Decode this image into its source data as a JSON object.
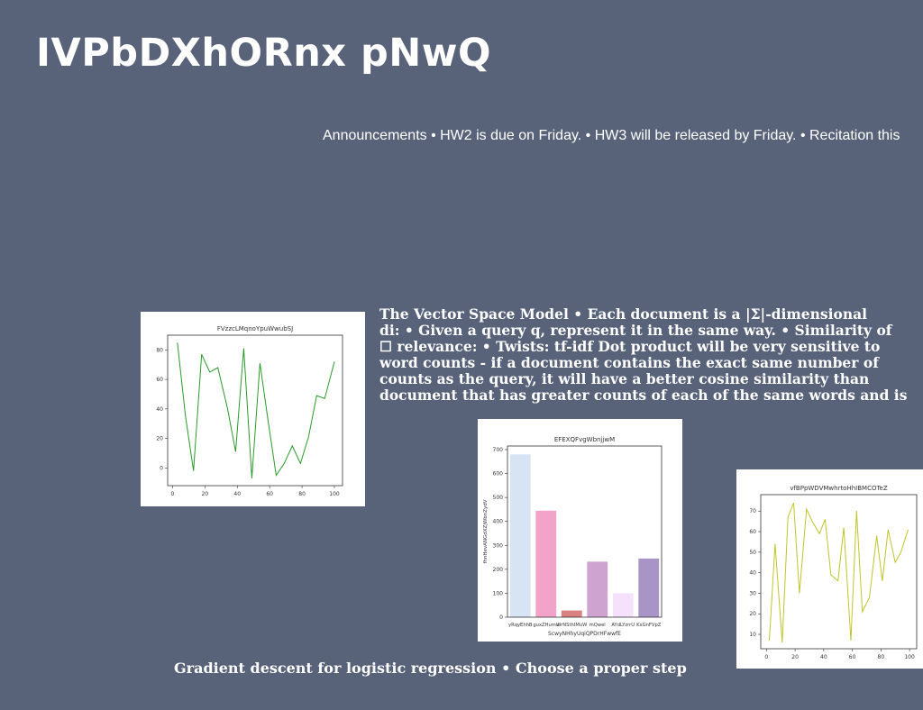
{
  "slide": {
    "title": "IVPbDXhORnx pNwQ",
    "announcements": "Announcements • HW2 is due on Friday. • HW3 will be released by Friday. • Recitation this",
    "vsm_lines": [
      "The Vector Space Model • Each document is a |Σ|-dimensional",
      "di: • Given a query q, represent it in the same way. • Similarity of",
      "☐ relevance: • Twists:  tf-idf Dot product will be very sensitive to",
      "word counts - if a document contains the exact same number of",
      "counts as the query, it will have a better cosine similarity than",
      "document that has greater counts of each of the same words and is"
    ],
    "footer": "Gradient descent for logistic regression • Choose a proper step"
  },
  "chart_data": [
    {
      "type": "line",
      "title": "FVzzcLMqnoYpuWwubSJ",
      "xlabel": "",
      "ylabel": "",
      "color": "#2a9a2a",
      "xlim": [
        -3,
        105
      ],
      "ylim": [
        -12,
        90
      ],
      "xticks": [
        0,
        20,
        40,
        60,
        80,
        100
      ],
      "yticks": [
        0,
        20,
        40,
        60,
        80
      ],
      "x": [
        3,
        8,
        13,
        18,
        23,
        28,
        34,
        39,
        44,
        49,
        54,
        59,
        64,
        69,
        74,
        79,
        84,
        89,
        94,
        100
      ],
      "y": [
        85,
        35,
        -2,
        77,
        65,
        68,
        40,
        11,
        81,
        -7,
        71,
        32,
        -5,
        3,
        15,
        3,
        21,
        49,
        47,
        72
      ]
    },
    {
      "type": "bar",
      "title": "EFEXQFvgWbnjjwM",
      "xlabel": "ScwyNHhyUqiQPDrHFwwfE",
      "ylabel": "fhnHevANGdXZjWbnZydV",
      "ylim": [
        0,
        715
      ],
      "yticks": [
        0,
        100,
        200,
        300,
        400,
        500,
        600,
        700
      ],
      "categories": [
        "yRqyEhhB",
        "guxZHumu",
        "WrNSthIMuW",
        "mQwel",
        "AYdLYzrrU",
        "KxGnFVpZ"
      ],
      "values": [
        680,
        445,
        28,
        232,
        100,
        245
      ],
      "colors": [
        "#d6e4f5",
        "#f2a3c9",
        "#d98080",
        "#cfa3d0",
        "#f5e1fb",
        "#a894c6"
      ]
    },
    {
      "type": "line",
      "title": "vfBPpWDVMwhrtoHhIBMCOTeZ",
      "xlabel": "",
      "ylabel": "",
      "color": "#c2c42a",
      "xlim": [
        -4,
        105
      ],
      "ylim": [
        3,
        78
      ],
      "xticks": [
        0,
        20,
        40,
        60,
        80,
        100
      ],
      "yticks": [
        10,
        20,
        30,
        40,
        50,
        60,
        70
      ],
      "x": [
        2,
        6,
        11,
        15,
        19,
        23,
        28,
        32,
        37,
        41,
        45,
        50,
        54,
        59,
        63,
        67,
        72,
        77,
        81,
        85,
        90,
        94,
        99
      ],
      "y": [
        7,
        54,
        6,
        67,
        74,
        30,
        71,
        65,
        59,
        66,
        39,
        36,
        62,
        7,
        70,
        21,
        28,
        58,
        36,
        61,
        45,
        50,
        61
      ]
    }
  ]
}
